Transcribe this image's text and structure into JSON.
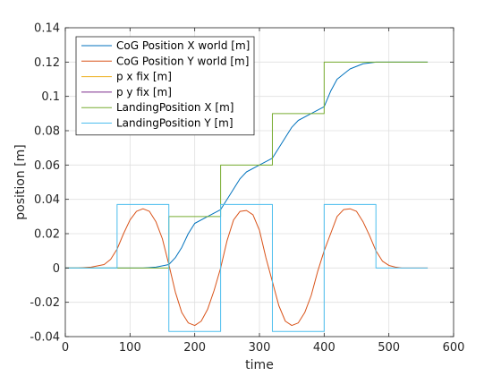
{
  "chart_data": {
    "type": "line",
    "title": "",
    "xlabel": "time",
    "ylabel": "position [m]",
    "xlim": [
      0,
      600
    ],
    "ylim": [
      -0.04,
      0.14
    ],
    "xticks": [
      0,
      100,
      200,
      300,
      400,
      500,
      600
    ],
    "yticks": [
      -0.04,
      -0.02,
      0,
      0.02,
      0.04,
      0.06,
      0.08,
      0.1,
      0.12,
      0.14
    ],
    "xtick_labels": [
      "0",
      "100",
      "200",
      "300",
      "400",
      "500",
      "600"
    ],
    "ytick_labels": [
      "-0.04",
      "-0.02",
      "0",
      "0.02",
      "0.04",
      "0.06",
      "0.08",
      "0.1",
      "0.12",
      "0.14"
    ],
    "grid": true,
    "legend_position": "top-left",
    "series": [
      {
        "name": "CoG Position X world [m]",
        "color": "#0072BD",
        "x": [
          0,
          120,
          140,
          160,
          170,
          180,
          190,
          200,
          220,
          240,
          250,
          260,
          270,
          280,
          300,
          320,
          330,
          340,
          350,
          360,
          380,
          400,
          410,
          420,
          440,
          460,
          480,
          560
        ],
        "y": [
          0,
          0,
          0.0005,
          0.002,
          0.006,
          0.012,
          0.02,
          0.026,
          0.03,
          0.034,
          0.04,
          0.046,
          0.052,
          0.056,
          0.06,
          0.064,
          0.07,
          0.076,
          0.082,
          0.086,
          0.09,
          0.094,
          0.103,
          0.11,
          0.116,
          0.119,
          0.12,
          0.12
        ]
      },
      {
        "name": "CoG Position Y world [m]",
        "color": "#D95319",
        "x": [
          0,
          20,
          40,
          60,
          70,
          80,
          90,
          100,
          110,
          120,
          130,
          140,
          150,
          160,
          170,
          180,
          190,
          200,
          210,
          220,
          230,
          240,
          250,
          260,
          270,
          280,
          290,
          300,
          310,
          320,
          330,
          340,
          350,
          360,
          370,
          380,
          390,
          400,
          410,
          420,
          430,
          440,
          450,
          460,
          470,
          480,
          490,
          500,
          510,
          520,
          530,
          540,
          560
        ],
        "y": [
          0,
          0,
          0.0005,
          0.002,
          0.005,
          0.011,
          0.02,
          0.028,
          0.033,
          0.0345,
          0.033,
          0.027,
          0.017,
          0.002,
          -0.014,
          -0.026,
          -0.032,
          -0.0335,
          -0.031,
          -0.024,
          -0.013,
          0.0,
          0.016,
          0.028,
          0.033,
          0.0335,
          0.031,
          0.022,
          0.006,
          -0.008,
          -0.022,
          -0.031,
          -0.0335,
          -0.032,
          -0.026,
          -0.016,
          -0.002,
          0.01,
          0.02,
          0.03,
          0.034,
          0.0345,
          0.033,
          0.027,
          0.019,
          0.01,
          0.004,
          0.0015,
          0.0005,
          0,
          0,
          0,
          0
        ]
      },
      {
        "name": "p x fix [m]",
        "color": "#EDB120",
        "x": [],
        "y": []
      },
      {
        "name": "p y fix [m]",
        "color": "#7E2F8E",
        "x": [],
        "y": []
      },
      {
        "name": "LandingPosition X [m]",
        "color": "#77AC30",
        "x": [
          0,
          160,
          160,
          240,
          240,
          320,
          320,
          400,
          400,
          560
        ],
        "y": [
          0,
          0,
          0.03,
          0.03,
          0.06,
          0.06,
          0.09,
          0.09,
          0.12,
          0.12
        ]
      },
      {
        "name": "LandingPosition Y [m]",
        "color": "#4DBEEE",
        "x": [
          0,
          80,
          80,
          160,
          160,
          240,
          240,
          320,
          320,
          400,
          400,
          480,
          480,
          560
        ],
        "y": [
          0,
          0,
          0.037,
          0.037,
          -0.037,
          -0.037,
          0.037,
          0.037,
          -0.037,
          -0.037,
          0.037,
          0.037,
          0,
          0
        ]
      }
    ]
  }
}
